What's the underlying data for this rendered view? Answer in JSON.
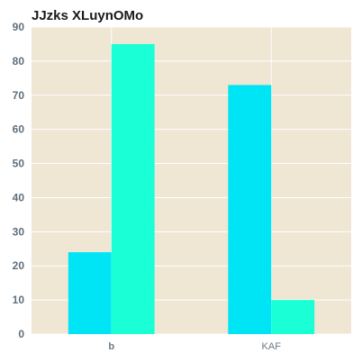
{
  "chart_data": {
    "type": "bar",
    "title": "JJzks XLuynOMo",
    "xlabel": "",
    "ylabel": "",
    "categories": [
      "b",
      "KAF"
    ],
    "series": [
      {
        "values": [
          24,
          73
        ],
        "color": "#00e5f5"
      },
      {
        "values": [
          85,
          10
        ],
        "color": "#1affd5"
      }
    ],
    "ylim": [
      0,
      90
    ],
    "yticks": [
      0,
      10,
      20,
      30,
      40,
      50,
      60,
      70,
      80,
      90
    ],
    "grid": true,
    "background": "#efe6d3",
    "grid_color": "#ffffff"
  }
}
